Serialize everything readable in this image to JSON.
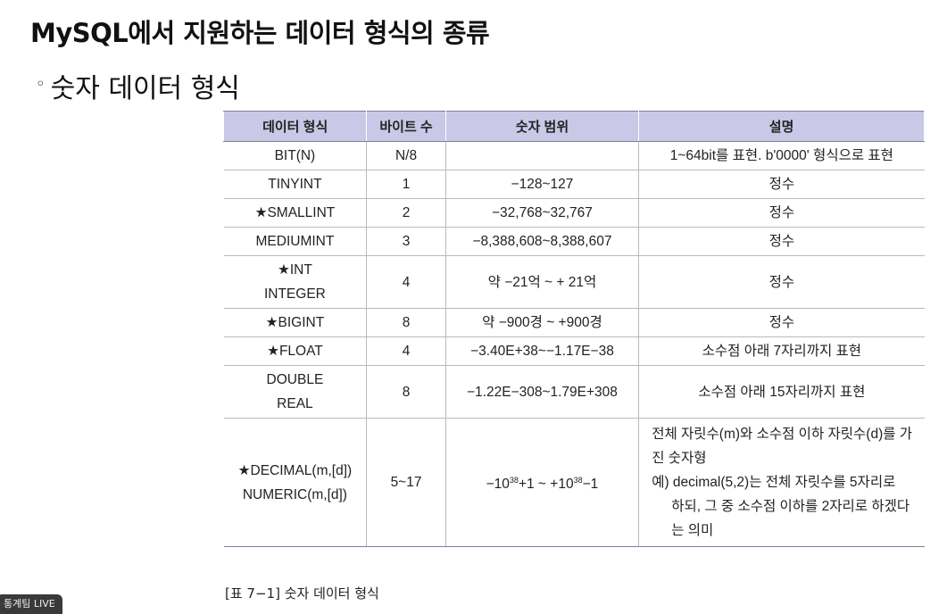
{
  "title": "MySQL에서 지원하는 데이터 형식의 종류",
  "subtitle": "숫자 데이터 형식",
  "subtitle_bullet": "◦",
  "table": {
    "headers": [
      "데이터 형식",
      "바이트 수",
      "숫자 범위",
      "설명"
    ],
    "rows": [
      {
        "type": "BIT(N)",
        "bytes": "N/8",
        "range": "",
        "desc": "1~64bit를 표현. b'0000' 형식으로 표현"
      },
      {
        "type": "TINYINT",
        "bytes": "1",
        "range": "−128~127",
        "desc": "정수"
      },
      {
        "type": "★SMALLINT",
        "bytes": "2",
        "range": "−32,768~32,767",
        "desc": "정수"
      },
      {
        "type": "MEDIUMINT",
        "bytes": "3",
        "range": "−8,388,608~8,388,607",
        "desc": "정수"
      },
      {
        "type_line1": "★INT",
        "type_line2": "INTEGER",
        "bytes": "4",
        "range": "약 −21억 ~ + 21억",
        "desc": "정수"
      },
      {
        "type": "★BIGINT",
        "bytes": "8",
        "range": "약 −900경 ~ +900경",
        "desc": "정수"
      },
      {
        "type": "★FLOAT",
        "bytes": "4",
        "range": "−3.40E+38~−1.17E−38",
        "desc": "소수점 아래 7자리까지 표현"
      },
      {
        "type_line1": "DOUBLE",
        "type_line2": "REAL",
        "bytes": "8",
        "range": "−1.22E−308~1.79E+308",
        "desc": "소수점 아래 15자리까지 표현"
      },
      {
        "type_line1": "★DECIMAL(m,[d])",
        "type_line2": "NUMERIC(m,[d])",
        "bytes": "5~17",
        "range_prefix": "−10",
        "range_exp1": "38",
        "range_mid": "+1 ~ +10",
        "range_exp2": "38",
        "range_suffix": "−1",
        "desc_line1": "전체 자릿수(m)와 소수점 이하 자릿수(d)를 가",
        "desc_line2": "진 숫자형",
        "desc_line3": "예) decimal(5,2)는 전체 자릿수를 5자리로",
        "desc_line4": "하되, 그 중 소수점 이하를 2자리로 하겠다",
        "desc_line5": "는 의미"
      }
    ]
  },
  "caption": "[표 7−1] 숫자 데이터 형식",
  "live_badge": "통계팀 LIVE",
  "colors": {
    "header_bg": "#c9c8e6",
    "border": "#b9b9c4"
  }
}
